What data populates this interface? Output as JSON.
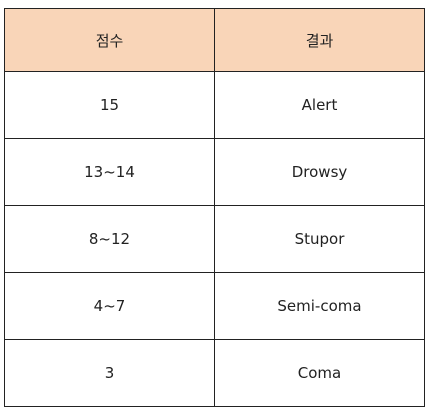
{
  "header_color": "#f9d5b8",
  "table": {
    "headers": [
      "점수",
      "결과"
    ],
    "rows": [
      [
        "15",
        "Alert"
      ],
      [
        "13~14",
        "Drowsy"
      ],
      [
        "8~12",
        "Stupor"
      ],
      [
        "4~7",
        "Semi-coma"
      ],
      [
        "3",
        "Coma"
      ]
    ]
  }
}
